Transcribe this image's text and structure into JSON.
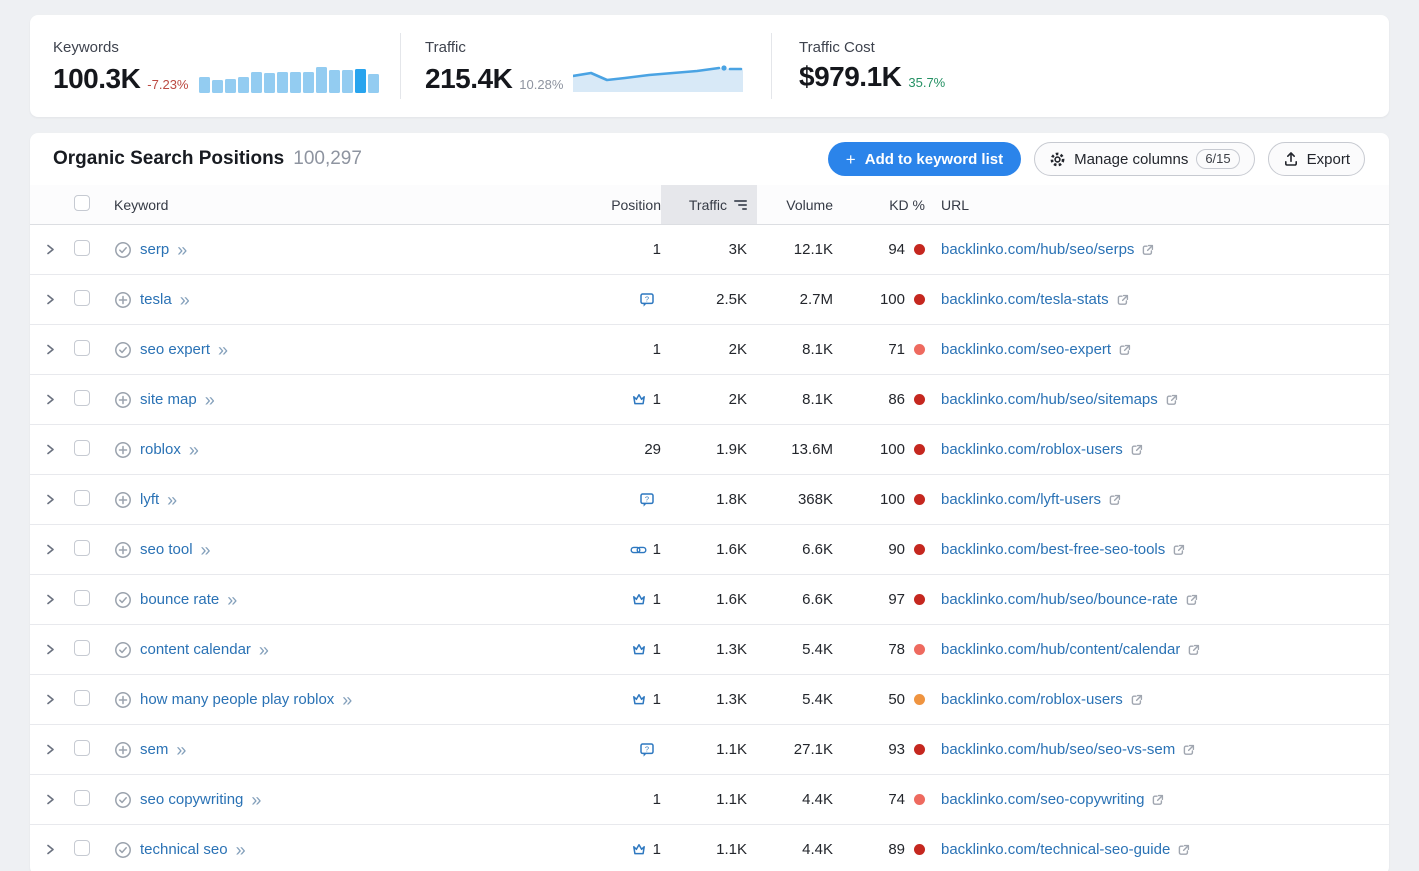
{
  "stats": {
    "keywords": {
      "label": "Keywords",
      "value": "100.3K",
      "change": "-7.23%",
      "change_color": "#bb4a42",
      "bars": [
        52,
        45,
        47,
        52,
        70,
        68,
        71,
        70,
        70,
        86,
        77,
        78,
        79,
        63
      ],
      "highlight_index": 12,
      "bar_color": "#93ccf1",
      "bar_highlight_color": "#28a4ee"
    },
    "traffic": {
      "label": "Traffic",
      "value": "215.4K",
      "change": "10.28%",
      "change_color": "#8e94a0",
      "line_color": "#4aa3e3",
      "fill_color": "#d8e9f7",
      "line_points": [
        [
          0,
          13
        ],
        [
          18,
          10
        ],
        [
          34,
          17
        ],
        [
          52,
          15
        ],
        [
          76,
          12
        ],
        [
          100,
          10
        ],
        [
          124,
          8
        ],
        [
          146,
          5
        ]
      ],
      "dot": [
        151,
        5
      ],
      "dash": [
        [
          157,
          6
        ],
        [
          168,
          6
        ]
      ],
      "area_tail": [
        [
          170,
          7
        ],
        [
          170,
          29
        ],
        [
          0,
          29
        ]
      ]
    },
    "traffic_cost": {
      "label": "Traffic Cost",
      "value": "$979.1K",
      "change": "35.7%",
      "change_color": "#259164"
    }
  },
  "section": {
    "title": "Organic Search Positions",
    "count": "100,297",
    "add_button": "Add to keyword list",
    "manage_columns": "Manage columns",
    "columns_badge": "6/15",
    "export": "Export"
  },
  "table": {
    "headers": {
      "keyword": "Keyword",
      "position": "Position",
      "traffic": "Traffic",
      "volume": "Volume",
      "kd": "KD %",
      "url": "URL"
    },
    "rows": [
      {
        "keyword": "serp",
        "keyword_icon": "check",
        "serp_feature": null,
        "position": "1",
        "traffic": "3K",
        "volume": "12.1K",
        "kd": "94",
        "kd_color": "#c5271f",
        "url": "backlinko.com/hub/seo/serps"
      },
      {
        "keyword": "tesla",
        "keyword_icon": "plus",
        "serp_feature": "review-bubble",
        "position": "",
        "traffic": "2.5K",
        "volume": "2.7M",
        "kd": "100",
        "kd_color": "#c5271f",
        "url": "backlinko.com/tesla-stats"
      },
      {
        "keyword": "seo expert",
        "keyword_icon": "check",
        "serp_feature": null,
        "position": "1",
        "traffic": "2K",
        "volume": "8.1K",
        "kd": "71",
        "kd_color": "#ee6a5f",
        "url": "backlinko.com/seo-expert"
      },
      {
        "keyword": "site map",
        "keyword_icon": "plus",
        "serp_feature": "crown",
        "position": "1",
        "traffic": "2K",
        "volume": "8.1K",
        "kd": "86",
        "kd_color": "#c5271f",
        "url": "backlinko.com/hub/seo/sitemaps"
      },
      {
        "keyword": "roblox",
        "keyword_icon": "plus",
        "serp_feature": null,
        "position": "29",
        "traffic": "1.9K",
        "volume": "13.6M",
        "kd": "100",
        "kd_color": "#c5271f",
        "url": "backlinko.com/roblox-users"
      },
      {
        "keyword": "lyft",
        "keyword_icon": "plus",
        "serp_feature": "review-bubble",
        "position": "",
        "traffic": "1.8K",
        "volume": "368K",
        "kd": "100",
        "kd_color": "#c5271f",
        "url": "backlinko.com/lyft-users"
      },
      {
        "keyword": "seo tool",
        "keyword_icon": "plus",
        "serp_feature": "link",
        "position": "1",
        "traffic": "1.6K",
        "volume": "6.6K",
        "kd": "90",
        "kd_color": "#c5271f",
        "url": "backlinko.com/best-free-seo-tools"
      },
      {
        "keyword": "bounce rate",
        "keyword_icon": "check",
        "serp_feature": "crown",
        "position": "1",
        "traffic": "1.6K",
        "volume": "6.6K",
        "kd": "97",
        "kd_color": "#c5271f",
        "url": "backlinko.com/hub/seo/bounce-rate"
      },
      {
        "keyword": "content calendar",
        "keyword_icon": "check",
        "serp_feature": "crown",
        "position": "1",
        "traffic": "1.3K",
        "volume": "5.4K",
        "kd": "78",
        "kd_color": "#ee6a5f",
        "url": "backlinko.com/hub/content/calendar"
      },
      {
        "keyword": "how many people play roblox",
        "keyword_icon": "plus",
        "serp_feature": "crown",
        "position": "1",
        "traffic": "1.3K",
        "volume": "5.4K",
        "kd": "50",
        "kd_color": "#ef9440",
        "url": "backlinko.com/roblox-users"
      },
      {
        "keyword": "sem",
        "keyword_icon": "plus",
        "serp_feature": "review-bubble",
        "position": "",
        "traffic": "1.1K",
        "volume": "27.1K",
        "kd": "93",
        "kd_color": "#c5271f",
        "url": "backlinko.com/hub/seo/seo-vs-sem"
      },
      {
        "keyword": "seo copywriting",
        "keyword_icon": "check",
        "serp_feature": null,
        "position": "1",
        "traffic": "1.1K",
        "volume": "4.4K",
        "kd": "74",
        "kd_color": "#ee6a5f",
        "url": "backlinko.com/seo-copywriting"
      },
      {
        "keyword": "technical seo",
        "keyword_icon": "check",
        "serp_feature": "crown",
        "position": "1",
        "traffic": "1.1K",
        "volume": "4.4K",
        "kd": "89",
        "kd_color": "#c5271f",
        "url": "backlinko.com/technical-seo-guide"
      }
    ]
  }
}
